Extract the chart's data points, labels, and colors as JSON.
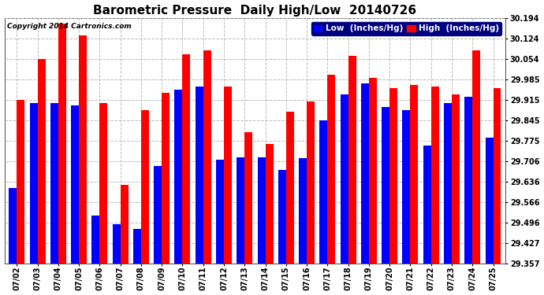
{
  "title": "Barometric Pressure  Daily High/Low  20140726",
  "copyright": "Copyright 2014 Cartronics.com",
  "legend_low": "Low  (Inches/Hg)",
  "legend_high": "High  (Inches/Hg)",
  "dates": [
    "07/02",
    "07/03",
    "07/04",
    "07/05",
    "07/06",
    "07/07",
    "07/08",
    "07/09",
    "07/10",
    "07/11",
    "07/12",
    "07/13",
    "07/14",
    "07/15",
    "07/16",
    "07/17",
    "07/18",
    "07/19",
    "07/20",
    "07/21",
    "07/22",
    "07/23",
    "07/24",
    "07/25"
  ],
  "low_values": [
    29.615,
    29.905,
    29.905,
    29.895,
    29.52,
    29.49,
    29.475,
    29.69,
    29.95,
    29.96,
    29.71,
    29.72,
    29.72,
    29.675,
    29.715,
    29.845,
    29.935,
    29.97,
    29.89,
    29.88,
    29.76,
    29.905,
    29.925,
    29.785
  ],
  "high_values": [
    29.915,
    30.055,
    30.175,
    30.135,
    29.905,
    29.625,
    29.88,
    29.94,
    30.07,
    30.085,
    29.96,
    29.805,
    29.765,
    29.875,
    29.91,
    30.0,
    30.065,
    29.99,
    29.955,
    29.965,
    29.96,
    29.935,
    30.085,
    29.955
  ],
  "ylim_min": 29.357,
  "ylim_max": 30.194,
  "yticks": [
    29.357,
    29.427,
    29.496,
    29.566,
    29.636,
    29.706,
    29.775,
    29.845,
    29.915,
    29.985,
    30.054,
    30.124,
    30.194
  ],
  "bar_width": 0.38,
  "low_color": "#0000ff",
  "high_color": "#ff0000",
  "background_color": "#ffffff",
  "plot_bg_color": "#ffffff",
  "grid_color": "#bbbbbb",
  "title_fontsize": 11,
  "tick_fontsize": 7,
  "legend_fontsize": 7.5
}
